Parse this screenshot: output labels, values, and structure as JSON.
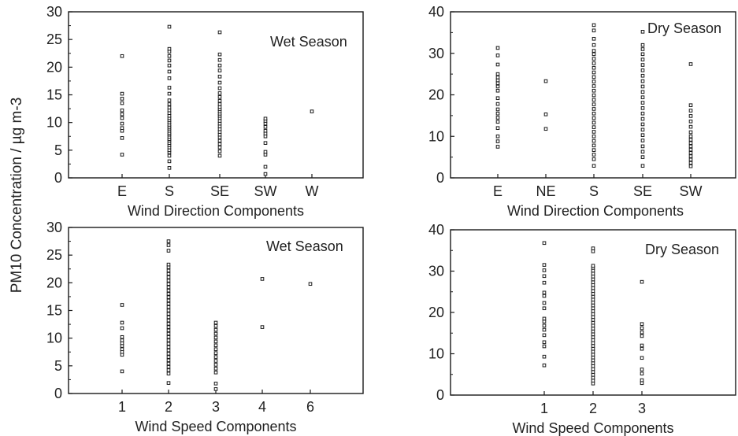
{
  "figure": {
    "shared_ylabel": "PM10 Concentration / µg m-3"
  },
  "chart_data": [
    {
      "type": "scatter",
      "panel_label": "Wet Season",
      "xlabel": "Wind Direction Components",
      "categories": [
        "E",
        "S",
        "SE",
        "SW",
        "W"
      ],
      "ylim": [
        0,
        30
      ],
      "yticks": [
        0,
        5,
        10,
        15,
        20,
        25,
        30
      ],
      "points": [
        [
          0,
          4.2
        ],
        [
          0,
          7.2
        ],
        [
          0,
          8.5
        ],
        [
          0,
          9.0
        ],
        [
          0,
          9.8
        ],
        [
          0,
          10.8
        ],
        [
          0,
          11.5
        ],
        [
          0,
          12.2
        ],
        [
          0,
          13.5
        ],
        [
          0,
          14.3
        ],
        [
          0,
          15.2
        ],
        [
          0,
          22.0
        ],
        [
          1,
          1.8
        ],
        [
          1,
          3.0
        ],
        [
          1,
          4.0
        ],
        [
          1,
          4.6
        ],
        [
          1,
          5.0
        ],
        [
          1,
          5.5
        ],
        [
          1,
          5.9
        ],
        [
          1,
          6.3
        ],
        [
          1,
          6.7
        ],
        [
          1,
          7.0
        ],
        [
          1,
          7.4
        ],
        [
          1,
          7.8
        ],
        [
          1,
          8.1
        ],
        [
          1,
          8.5
        ],
        [
          1,
          8.9
        ],
        [
          1,
          9.2
        ],
        [
          1,
          9.6
        ],
        [
          1,
          10.0
        ],
        [
          1,
          10.4
        ],
        [
          1,
          10.8
        ],
        [
          1,
          11.2
        ],
        [
          1,
          11.7
        ],
        [
          1,
          12.2
        ],
        [
          1,
          12.7
        ],
        [
          1,
          13.3
        ],
        [
          1,
          14.0
        ],
        [
          1,
          15.2
        ],
        [
          1,
          16.3
        ],
        [
          1,
          18.0
        ],
        [
          1,
          19.2
        ],
        [
          1,
          20.3
        ],
        [
          1,
          21.2
        ],
        [
          1,
          22.0
        ],
        [
          1,
          22.8
        ],
        [
          1,
          23.3
        ],
        [
          1,
          27.3
        ],
        [
          2,
          4.0
        ],
        [
          2,
          4.8
        ],
        [
          2,
          5.5
        ],
        [
          2,
          6.1
        ],
        [
          2,
          6.7
        ],
        [
          2,
          7.3
        ],
        [
          2,
          7.8
        ],
        [
          2,
          8.3
        ],
        [
          2,
          8.8
        ],
        [
          2,
          9.3
        ],
        [
          2,
          9.8
        ],
        [
          2,
          10.3
        ],
        [
          2,
          10.8
        ],
        [
          2,
          11.2
        ],
        [
          2,
          11.6
        ],
        [
          2,
          12.0
        ],
        [
          2,
          12.4
        ],
        [
          2,
          12.8
        ],
        [
          2,
          13.3
        ],
        [
          2,
          13.9
        ],
        [
          2,
          14.6
        ],
        [
          2,
          15.3
        ],
        [
          2,
          16.2
        ],
        [
          2,
          17.2
        ],
        [
          2,
          18.3
        ],
        [
          2,
          19.4
        ],
        [
          2,
          20.3
        ],
        [
          2,
          21.3
        ],
        [
          2,
          22.3
        ],
        [
          2,
          26.3
        ],
        [
          3,
          0.7
        ],
        [
          3,
          2.0
        ],
        [
          3,
          4.2
        ],
        [
          3,
          4.7
        ],
        [
          3,
          6.3
        ],
        [
          3,
          7.5
        ],
        [
          3,
          8.0
        ],
        [
          3,
          8.5
        ],
        [
          3,
          9.2
        ],
        [
          3,
          9.8
        ],
        [
          3,
          10.3
        ],
        [
          3,
          10.7
        ],
        [
          4,
          12.0
        ]
      ]
    },
    {
      "type": "scatter",
      "panel_label": "Dry Season",
      "xlabel": "Wind Direction Components",
      "categories": [
        "E",
        "NE",
        "S",
        "SE",
        "SW"
      ],
      "ylim": [
        0,
        40
      ],
      "yticks": [
        0,
        10,
        20,
        30,
        40
      ],
      "points": [
        [
          0,
          7.5
        ],
        [
          0,
          8.8
        ],
        [
          0,
          10.0
        ],
        [
          0,
          12.0
        ],
        [
          0,
          13.5
        ],
        [
          0,
          14.5
        ],
        [
          0,
          15.5
        ],
        [
          0,
          16.5
        ],
        [
          0,
          17.8
        ],
        [
          0,
          19.2
        ],
        [
          0,
          21.0
        ],
        [
          0,
          22.0
        ],
        [
          0,
          22.8
        ],
        [
          0,
          23.5
        ],
        [
          0,
          24.2
        ],
        [
          0,
          25.0
        ],
        [
          0,
          27.3
        ],
        [
          0,
          29.5
        ],
        [
          0,
          31.3
        ],
        [
          1,
          11.8
        ],
        [
          1,
          15.3
        ],
        [
          1,
          23.3
        ],
        [
          2,
          2.9
        ],
        [
          2,
          4.5
        ],
        [
          2,
          5.6
        ],
        [
          2,
          6.7
        ],
        [
          2,
          7.8
        ],
        [
          2,
          8.9
        ],
        [
          2,
          10.0
        ],
        [
          2,
          11.1
        ],
        [
          2,
          12.2
        ],
        [
          2,
          13.3
        ],
        [
          2,
          14.4
        ],
        [
          2,
          15.5
        ],
        [
          2,
          16.6
        ],
        [
          2,
          17.7
        ],
        [
          2,
          18.8
        ],
        [
          2,
          19.9
        ],
        [
          2,
          21.0
        ],
        [
          2,
          22.1
        ],
        [
          2,
          23.2
        ],
        [
          2,
          24.3
        ],
        [
          2,
          25.4
        ],
        [
          2,
          26.5
        ],
        [
          2,
          27.6
        ],
        [
          2,
          28.7
        ],
        [
          2,
          29.8
        ],
        [
          2,
          30.6
        ],
        [
          2,
          32.0
        ],
        [
          2,
          33.5
        ],
        [
          2,
          35.5
        ],
        [
          2,
          36.8
        ],
        [
          3,
          2.9
        ],
        [
          3,
          5.0
        ],
        [
          3,
          6.3
        ],
        [
          3,
          7.6
        ],
        [
          3,
          9.0
        ],
        [
          3,
          10.3
        ],
        [
          3,
          11.6
        ],
        [
          3,
          12.9
        ],
        [
          3,
          14.2
        ],
        [
          3,
          15.5
        ],
        [
          3,
          16.8
        ],
        [
          3,
          18.1
        ],
        [
          3,
          19.4
        ],
        [
          3,
          20.7
        ],
        [
          3,
          22.0
        ],
        [
          3,
          23.3
        ],
        [
          3,
          24.6
        ],
        [
          3,
          25.9
        ],
        [
          3,
          27.2
        ],
        [
          3,
          28.5
        ],
        [
          3,
          29.8
        ],
        [
          3,
          31.0
        ],
        [
          3,
          32.0
        ],
        [
          3,
          35.2
        ],
        [
          4,
          2.8
        ],
        [
          4,
          3.6
        ],
        [
          4,
          4.4
        ],
        [
          4,
          5.2
        ],
        [
          4,
          6.0
        ],
        [
          4,
          6.8
        ],
        [
          4,
          7.6
        ],
        [
          4,
          8.4
        ],
        [
          4,
          9.2
        ],
        [
          4,
          10.0
        ],
        [
          4,
          11.0
        ],
        [
          4,
          12.3
        ],
        [
          4,
          13.6
        ],
        [
          4,
          14.9
        ],
        [
          4,
          16.2
        ],
        [
          4,
          17.5
        ],
        [
          4,
          27.4
        ]
      ]
    },
    {
      "type": "scatter",
      "panel_label": "Wet Season",
      "xlabel": "Wind Speed Components",
      "categories": [
        "1",
        "2",
        "3",
        "4",
        "6"
      ],
      "ylim": [
        0,
        30
      ],
      "yticks": [
        0,
        5,
        10,
        15,
        20,
        25,
        30
      ],
      "points": [
        [
          0,
          4.0
        ],
        [
          0,
          7.0
        ],
        [
          0,
          7.5
        ],
        [
          0,
          8.0
        ],
        [
          0,
          8.6
        ],
        [
          0,
          9.1
        ],
        [
          0,
          9.6
        ],
        [
          0,
          10.2
        ],
        [
          0,
          11.8
        ],
        [
          0,
          12.8
        ],
        [
          0,
          16.0
        ],
        [
          1,
          1.9
        ],
        [
          1,
          3.6
        ],
        [
          1,
          4.2
        ],
        [
          1,
          4.8
        ],
        [
          1,
          5.4
        ],
        [
          1,
          6.0
        ],
        [
          1,
          6.6
        ],
        [
          1,
          7.2
        ],
        [
          1,
          7.8
        ],
        [
          1,
          8.4
        ],
        [
          1,
          9.0
        ],
        [
          1,
          9.6
        ],
        [
          1,
          10.2
        ],
        [
          1,
          10.8
        ],
        [
          1,
          11.4
        ],
        [
          1,
          12.0
        ],
        [
          1,
          12.6
        ],
        [
          1,
          13.2
        ],
        [
          1,
          13.8
        ],
        [
          1,
          14.4
        ],
        [
          1,
          15.0
        ],
        [
          1,
          15.6
        ],
        [
          1,
          16.2
        ],
        [
          1,
          16.8
        ],
        [
          1,
          17.4
        ],
        [
          1,
          18.0
        ],
        [
          1,
          18.6
        ],
        [
          1,
          19.2
        ],
        [
          1,
          19.8
        ],
        [
          1,
          20.4
        ],
        [
          1,
          21.0
        ],
        [
          1,
          21.6
        ],
        [
          1,
          22.2
        ],
        [
          1,
          22.8
        ],
        [
          1,
          23.3
        ],
        [
          1,
          25.8
        ],
        [
          1,
          26.8
        ],
        [
          1,
          27.5
        ],
        [
          2,
          0.8
        ],
        [
          2,
          1.8
        ],
        [
          2,
          3.8
        ],
        [
          2,
          4.5
        ],
        [
          2,
          5.2
        ],
        [
          2,
          5.9
        ],
        [
          2,
          6.6
        ],
        [
          2,
          7.3
        ],
        [
          2,
          8.0
        ],
        [
          2,
          8.7
        ],
        [
          2,
          9.4
        ],
        [
          2,
          10.1
        ],
        [
          2,
          10.8
        ],
        [
          2,
          11.5
        ],
        [
          2,
          12.2
        ],
        [
          2,
          12.8
        ],
        [
          3,
          12.0
        ],
        [
          3,
          20.7
        ],
        [
          4,
          19.8
        ]
      ]
    },
    {
      "type": "scatter",
      "panel_label": "Dry Season",
      "xlabel": "Wind Speed Components",
      "categories": [
        "1",
        "2",
        "3"
      ],
      "ylim": [
        0,
        40
      ],
      "yticks": [
        0,
        10,
        20,
        30,
        40
      ],
      "points": [
        [
          0,
          7.2
        ],
        [
          0,
          9.3
        ],
        [
          0,
          11.8
        ],
        [
          0,
          12.8
        ],
        [
          0,
          14.5
        ],
        [
          0,
          15.8
        ],
        [
          0,
          16.8
        ],
        [
          0,
          17.8
        ],
        [
          0,
          18.5
        ],
        [
          0,
          21.0
        ],
        [
          0,
          22.3
        ],
        [
          0,
          24.0
        ],
        [
          0,
          24.8
        ],
        [
          0,
          27.2
        ],
        [
          0,
          28.8
        ],
        [
          0,
          30.2
        ],
        [
          0,
          31.5
        ],
        [
          0,
          36.8
        ],
        [
          1,
          2.8
        ],
        [
          1,
          3.5
        ],
        [
          1,
          4.2
        ],
        [
          1,
          4.9
        ],
        [
          1,
          5.6
        ],
        [
          1,
          6.3
        ],
        [
          1,
          7.0
        ],
        [
          1,
          7.7
        ],
        [
          1,
          8.4
        ],
        [
          1,
          9.1
        ],
        [
          1,
          9.8
        ],
        [
          1,
          10.5
        ],
        [
          1,
          11.2
        ],
        [
          1,
          11.9
        ],
        [
          1,
          12.6
        ],
        [
          1,
          13.3
        ],
        [
          1,
          14.0
        ],
        [
          1,
          14.7
        ],
        [
          1,
          15.4
        ],
        [
          1,
          16.1
        ],
        [
          1,
          16.8
        ],
        [
          1,
          17.5
        ],
        [
          1,
          18.2
        ],
        [
          1,
          18.9
        ],
        [
          1,
          19.6
        ],
        [
          1,
          20.3
        ],
        [
          1,
          21.0
        ],
        [
          1,
          21.7
        ],
        [
          1,
          22.4
        ],
        [
          1,
          23.1
        ],
        [
          1,
          23.8
        ],
        [
          1,
          24.5
        ],
        [
          1,
          25.2
        ],
        [
          1,
          25.9
        ],
        [
          1,
          26.6
        ],
        [
          1,
          27.3
        ],
        [
          1,
          28.0
        ],
        [
          1,
          28.7
        ],
        [
          1,
          29.4
        ],
        [
          1,
          30.1
        ],
        [
          1,
          30.8
        ],
        [
          1,
          31.3
        ],
        [
          1,
          34.8
        ],
        [
          1,
          35.5
        ],
        [
          2,
          2.9
        ],
        [
          2,
          3.6
        ],
        [
          2,
          5.2
        ],
        [
          2,
          6.2
        ],
        [
          2,
          9.0
        ],
        [
          2,
          11.2
        ],
        [
          2,
          12.0
        ],
        [
          2,
          14.3
        ],
        [
          2,
          15.2
        ],
        [
          2,
          16.2
        ],
        [
          2,
          17.2
        ],
        [
          2,
          27.4
        ]
      ]
    }
  ]
}
